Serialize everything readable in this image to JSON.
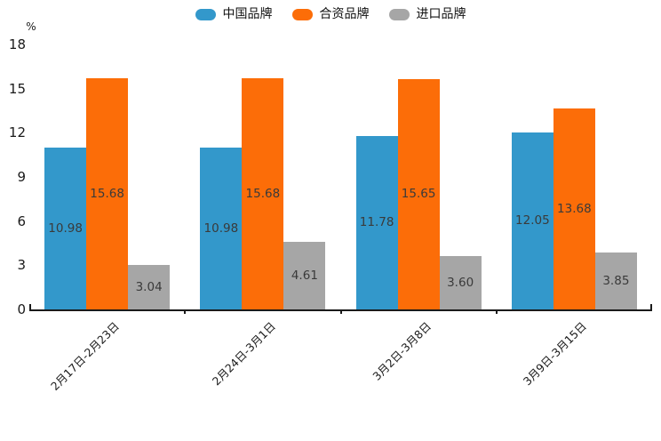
{
  "chart_data": {
    "type": "bar",
    "title": "",
    "unit_label": "%",
    "categories": [
      "2月17日-2月23日",
      "2月24日-3月1日",
      "3月2日-3月8日",
      "3月9日-3月15日"
    ],
    "series": [
      {
        "name": "中国品牌",
        "color": "#3398CB",
        "values": [
          10.98,
          10.98,
          11.78,
          12.05
        ]
      },
      {
        "name": "合资品牌",
        "color": "#FC6D08",
        "values": [
          15.68,
          15.68,
          15.65,
          13.68
        ]
      },
      {
        "name": "进口品牌",
        "color": "#A6A6A6",
        "values": [
          3.04,
          4.61,
          3.6,
          3.85
        ]
      }
    ],
    "yticks": [
      0,
      3,
      6,
      9,
      12,
      15,
      18
    ],
    "ylim": [
      0,
      18
    ],
    "value_labels": true,
    "value_label_decimals": 2,
    "legend_position": "top-center",
    "grid": false,
    "colors": {
      "axis": "#1a1a1a",
      "value_label": "#3a3a3a",
      "tick_label": "#1a1a1a",
      "background": "#ffffff"
    }
  }
}
